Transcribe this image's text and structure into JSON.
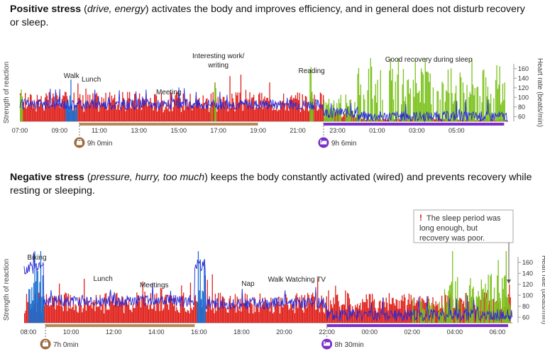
{
  "captions": {
    "positive": {
      "bold": "Positive stress",
      "italic": "drive, energy",
      "rest": " activates the body and improves efficiency, and in general does not disturb recovery or sleep."
    },
    "negative": {
      "bold": "Negative stress",
      "italic": "pressure, hurry, too much",
      "rest": " keeps the body constantly activated (wired) and prevents recovery while resting or sleeping."
    }
  },
  "colors": {
    "stress": "#e0201a",
    "recovery": "#7cc21d",
    "physical_activity": "#1a6fd1",
    "light_activity": "#9fc4ee",
    "heart_rate": "#2a2ad4",
    "work_bar": "#b5895a",
    "sleep_bar": "#7b2fc9",
    "icon_work": "#9c6a3b",
    "icon_sleep": "#7b2fc9"
  },
  "chart_data": [
    {
      "type": "bar",
      "id": "positive-stress-day",
      "xlabel": "",
      "ylabel_left": "Strength of reaction",
      "ylabel_right": "Heart rate (beats/min)",
      "x_range_hours": [
        6.0,
        30.6
      ],
      "x_ticks": [
        "07:00",
        "09:00",
        "11:00",
        "13:00",
        "15:00",
        "17:00",
        "19:00",
        "21:00",
        "23:00",
        "01:00",
        "03:00",
        "05:00"
      ],
      "hr_ticks": [
        60,
        80,
        100,
        120,
        140,
        160
      ],
      "hr_range": [
        50,
        170
      ],
      "annotations": [
        {
          "text": "Walk",
          "hour": 8.6
        },
        {
          "text": "Lunch",
          "hour": 9.6
        },
        {
          "text": "Meeting",
          "hour": 13.5
        },
        {
          "text": "Interesting work/",
          "hour": 16.0
        },
        {
          "text": "writing",
          "hour": 16.0
        },
        {
          "text": "Reading",
          "hour": 20.7
        },
        {
          "text": "Good recovery during sleep",
          "hour": 26.6
        }
      ],
      "work_period": {
        "start": 9.0,
        "end": 18.0,
        "label": "9h 0min",
        "icon": "briefcase-icon"
      },
      "sleep_period": {
        "start": 21.3,
        "end": 30.4,
        "label": "9h 6min",
        "icon": "bed-icon"
      },
      "series": [
        {
          "name": "",
          "kind": "stress",
          "segments": [
            [
              6.0,
              21.3,
              0.45
            ],
            [
              21.3,
              23.0,
              0.15
            ],
            [
              23.0,
              30.5,
              0.04
            ]
          ]
        },
        {
          "name": "",
          "kind": "recovery",
          "segments": [
            [
              6.0,
              6.3,
              0.6
            ],
            [
              15.6,
              15.9,
              0.8
            ],
            [
              16.0,
              16.1,
              0.9
            ],
            [
              20.6,
              20.8,
              0.85
            ],
            [
              21.3,
              23.0,
              0.35
            ],
            [
              23.0,
              30.5,
              0.82
            ]
          ]
        },
        {
          "name": "",
          "kind": "physical_activity",
          "segments": [
            [
              8.3,
              8.9,
              0.4
            ]
          ]
        },
        {
          "name": "",
          "kind": "heart_rate",
          "level_by_period": [
            [
              6.0,
              21.3,
              85
            ],
            [
              21.3,
              23.0,
              68
            ],
            [
              23.0,
              30.5,
              60
            ]
          ]
        }
      ]
    },
    {
      "type": "bar",
      "id": "negative-stress-day",
      "xlabel": "",
      "ylabel_left": "Strength of reaction",
      "ylabel_right": "Heart rate (beats/min)",
      "x_range_hours": [
        7.8,
        30.7
      ],
      "x_ticks": [
        "08:00",
        "10:00",
        "12:00",
        "14:00",
        "16:00",
        "18:00",
        "20:00",
        "22:00",
        "00:00",
        "02:00",
        "04:00",
        "06:00"
      ],
      "hr_ticks": [
        60,
        80,
        100,
        120,
        140,
        160
      ],
      "hr_range": [
        50,
        170
      ],
      "annotations": [
        {
          "text": "Biking",
          "hour": 8.4
        },
        {
          "text": "Lunch",
          "hour": 11.5
        },
        {
          "text": "Meetings",
          "hour": 13.9
        },
        {
          "text": "Nap",
          "hour": 18.3
        },
        {
          "text": "Walk",
          "hour": 19.6
        },
        {
          "text": "Watching TV",
          "hour": 21.0
        }
      ],
      "callout": {
        "lines": [
          "The sleep period was",
          "long enough, but",
          "recovery was poor."
        ],
        "marker": "!"
      },
      "work_period": {
        "start": 8.8,
        "end": 15.8,
        "label": "7h 0min",
        "icon": "briefcase-icon"
      },
      "sleep_period": {
        "start": 22.0,
        "end": 30.5,
        "label": "8h 30min",
        "icon": "bed-icon"
      },
      "series": [
        {
          "name": "",
          "kind": "stress",
          "segments": [
            [
              7.8,
              30.6,
              0.4
            ]
          ]
        },
        {
          "name": "",
          "kind": "recovery",
          "segments": [
            [
              26.0,
              27.5,
              0.35
            ],
            [
              27.5,
              30.6,
              0.65
            ]
          ]
        },
        {
          "name": "",
          "kind": "physical_activity",
          "segments": [
            [
              8.0,
              8.7,
              0.75
            ],
            [
              15.9,
              16.3,
              0.9
            ]
          ]
        },
        {
          "name": "",
          "kind": "heart_rate",
          "level_by_period": [
            [
              7.8,
              8.7,
              150
            ],
            [
              8.7,
              15.8,
              90
            ],
            [
              15.8,
              16.3,
              155
            ],
            [
              16.3,
              22.0,
              85
            ],
            [
              22.0,
              30.6,
              64
            ]
          ]
        }
      ]
    }
  ]
}
